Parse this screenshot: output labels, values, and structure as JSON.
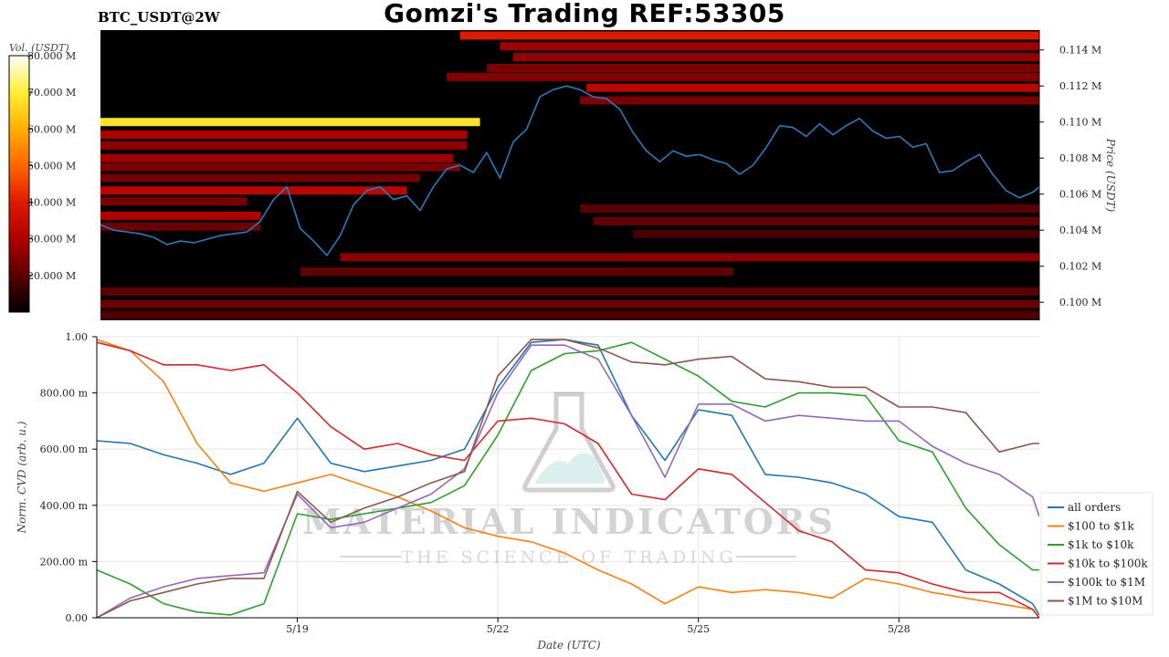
{
  "header": {
    "title": "Gomzi's Trading REF:53305",
    "pair": "BTC_USDT@2W"
  },
  "colorbar": {
    "label": "Vol. (USDT)",
    "ticks": [
      "20.000 M",
      "30.000 M",
      "40.000 M",
      "50.000 M",
      "60.000 M",
      "70.000 M",
      "80.000 M"
    ],
    "tick_values": [
      20,
      30,
      40,
      50,
      60,
      70,
      80
    ],
    "range": [
      10,
      80
    ],
    "colormap": [
      "#000000",
      "#5a0000",
      "#b00000",
      "#e01a00",
      "#ff6600",
      "#ffb000",
      "#ffee33",
      "#ffffff"
    ]
  },
  "watermark": {
    "line1": "MATERIAL INDICATORS",
    "line2": "THE SCIENCE OF TRADING"
  },
  "chart_data": [
    {
      "type": "heatmap",
      "ylabel": "Price (USDT)",
      "yticks": [
        "0.100 M",
        "0.102 M",
        "0.104 M",
        "0.106 M",
        "0.108 M",
        "0.110 M",
        "0.112 M",
        "0.114 M"
      ],
      "ytick_values": [
        100,
        102,
        104,
        106,
        108,
        110,
        112,
        114
      ],
      "ylim": [
        99.0,
        115.1
      ],
      "xlim": [
        0,
        14.1
      ],
      "walls": [
        {
          "price": 110.0,
          "from": 0,
          "to": 5.7,
          "volume": 68
        },
        {
          "price": 114.8,
          "from": 5.4,
          "to": 14.1,
          "volume": 40
        },
        {
          "price": 114.2,
          "from": 6.0,
          "to": 14.1,
          "volume": 28
        },
        {
          "price": 113.6,
          "from": 6.2,
          "to": 14.1,
          "volume": 27
        },
        {
          "price": 113.0,
          "from": 5.8,
          "to": 14.1,
          "volume": 24
        },
        {
          "price": 112.5,
          "from": 5.2,
          "to": 14.1,
          "volume": 25
        },
        {
          "price": 111.9,
          "from": 7.3,
          "to": 14.1,
          "volume": 32
        },
        {
          "price": 111.2,
          "from": 7.2,
          "to": 14.1,
          "volume": 24
        },
        {
          "price": 109.3,
          "from": 0,
          "to": 5.5,
          "volume": 30
        },
        {
          "price": 108.7,
          "from": 0,
          "to": 5.5,
          "volume": 26
        },
        {
          "price": 108.0,
          "from": 0,
          "to": 5.3,
          "volume": 28
        },
        {
          "price": 107.5,
          "from": 0,
          "to": 5.4,
          "volume": 24
        },
        {
          "price": 106.9,
          "from": 0,
          "to": 4.8,
          "volume": 23
        },
        {
          "price": 106.2,
          "from": 0,
          "to": 4.6,
          "volume": 32
        },
        {
          "price": 105.6,
          "from": 0,
          "to": 2.2,
          "volume": 24
        },
        {
          "price": 104.8,
          "from": 0,
          "to": 2.4,
          "volume": 30
        },
        {
          "price": 104.2,
          "from": 0,
          "to": 2.4,
          "volume": 22
        },
        {
          "price": 102.5,
          "from": 3.6,
          "to": 14.1,
          "volume": 26
        },
        {
          "price": 101.7,
          "from": 3.0,
          "to": 9.5,
          "volume": 21
        },
        {
          "price": 100.6,
          "from": 0,
          "to": 14.1,
          "volume": 20
        },
        {
          "price": 99.9,
          "from": 0,
          "to": 14.1,
          "volume": 22
        },
        {
          "price": 105.2,
          "from": 7.2,
          "to": 14.1,
          "volume": 20
        },
        {
          "price": 104.5,
          "from": 7.4,
          "to": 14.1,
          "volume": 21
        },
        {
          "price": 103.8,
          "from": 8.0,
          "to": 14.1,
          "volume": 18
        },
        {
          "price": 99.3,
          "from": 0,
          "to": 14.1,
          "volume": 19
        }
      ],
      "series": [
        {
          "name": "",
          "color": "#2b7bba",
          "x": [
            0.0,
            0.2,
            0.4,
            0.6,
            0.8,
            1.0,
            1.2,
            1.4,
            1.6,
            1.8,
            2.0,
            2.2,
            2.4,
            2.6,
            2.8,
            3.0,
            3.2,
            3.4,
            3.6,
            3.8,
            4.0,
            4.2,
            4.4,
            4.6,
            4.8,
            5.0,
            5.2,
            5.4,
            5.6,
            5.8,
            6.0,
            6.2,
            6.4,
            6.6,
            6.8,
            7.0,
            7.2,
            7.4,
            7.6,
            7.8,
            8.0,
            8.2,
            8.4,
            8.6,
            8.8,
            9.0,
            9.2,
            9.4,
            9.6,
            9.8,
            10.0,
            10.2,
            10.4,
            10.6,
            10.8,
            11.0,
            11.2,
            11.4,
            11.6,
            11.8,
            12.0,
            12.2,
            12.4,
            12.6,
            12.8,
            13.0,
            13.2,
            13.4,
            13.6,
            13.8,
            14.0,
            14.1
          ],
          "y": [
            104.3,
            104.0,
            103.9,
            103.8,
            103.6,
            103.2,
            103.4,
            103.3,
            103.5,
            103.7,
            103.8,
            103.9,
            104.5,
            105.7,
            106.4,
            104.1,
            103.4,
            102.6,
            103.7,
            105.4,
            106.2,
            106.4,
            105.7,
            105.9,
            105.1,
            106.4,
            107.4,
            107.6,
            107.2,
            108.3,
            106.9,
            108.9,
            109.6,
            111.4,
            111.8,
            112.0,
            111.8,
            111.4,
            111.3,
            110.7,
            109.4,
            108.4,
            107.8,
            108.4,
            108.1,
            108.2,
            107.9,
            107.7,
            107.1,
            107.6,
            108.6,
            109.8,
            109.7,
            109.2,
            109.9,
            109.3,
            109.8,
            110.2,
            109.5,
            109.1,
            109.2,
            108.6,
            108.8,
            107.2,
            107.3,
            107.8,
            108.2,
            107.1,
            106.2,
            105.8,
            106.1,
            106.4
          ]
        }
      ]
    },
    {
      "type": "line",
      "xlabel": "Date (UTC)",
      "ylabel": "Norm. CVD (arb. u.)",
      "xlim": [
        0,
        14.1
      ],
      "ylim": [
        0,
        1.0
      ],
      "xticks": [
        "5/19",
        "5/22",
        "5/25",
        "5/28"
      ],
      "xtick_values": [
        3,
        6,
        9,
        12
      ],
      "yticks": [
        "0.00",
        "200.00 m",
        "400.00 m",
        "600.00 m",
        "800.00 m",
        "1.00"
      ],
      "ytick_values": [
        0,
        0.2,
        0.4,
        0.6,
        0.8,
        1.0
      ],
      "legend_position": "bottom-right",
      "grid": true,
      "x": [
        0.0,
        0.5,
        1.0,
        1.5,
        2.0,
        2.5,
        3.0,
        3.5,
        4.0,
        4.5,
        5.0,
        5.5,
        6.0,
        6.5,
        7.0,
        7.5,
        8.0,
        8.5,
        9.0,
        9.5,
        10.0,
        10.5,
        11.0,
        11.5,
        12.0,
        12.5,
        13.0,
        13.5,
        14.0,
        14.1
      ],
      "series": [
        {
          "name": "all orders",
          "color": "#1f77b4",
          "values": [
            0.63,
            0.62,
            0.58,
            0.55,
            0.51,
            0.55,
            0.71,
            0.55,
            0.52,
            0.54,
            0.56,
            0.6,
            0.82,
            0.98,
            0.99,
            0.97,
            0.72,
            0.56,
            0.74,
            0.72,
            0.51,
            0.5,
            0.48,
            0.44,
            0.36,
            0.34,
            0.17,
            0.12,
            0.05,
            0.01
          ]
        },
        {
          "name": "$100 to $1k",
          "color": "#ff7f0e",
          "values": [
            0.99,
            0.95,
            0.84,
            0.62,
            0.48,
            0.45,
            0.48,
            0.51,
            0.47,
            0.43,
            0.38,
            0.32,
            0.29,
            0.27,
            0.23,
            0.17,
            0.12,
            0.05,
            0.11,
            0.09,
            0.1,
            0.09,
            0.07,
            0.14,
            0.12,
            0.09,
            0.07,
            0.05,
            0.03,
            0.0
          ]
        },
        {
          "name": "$1k to $10k",
          "color": "#2ca02c",
          "values": [
            0.17,
            0.12,
            0.05,
            0.02,
            0.01,
            0.05,
            0.37,
            0.35,
            0.37,
            0.39,
            0.41,
            0.47,
            0.65,
            0.88,
            0.94,
            0.95,
            0.98,
            0.92,
            0.86,
            0.77,
            0.75,
            0.8,
            0.8,
            0.79,
            0.63,
            0.59,
            0.39,
            0.26,
            0.17,
            0.17
          ]
        },
        {
          "name": "$10k to $100k",
          "color": "#d62728",
          "values": [
            0.98,
            0.95,
            0.9,
            0.9,
            0.88,
            0.9,
            0.8,
            0.68,
            0.6,
            0.62,
            0.58,
            0.56,
            0.7,
            0.71,
            0.69,
            0.62,
            0.44,
            0.42,
            0.53,
            0.51,
            0.41,
            0.31,
            0.27,
            0.17,
            0.16,
            0.12,
            0.09,
            0.09,
            0.03,
            0.0
          ]
        },
        {
          "name": "$100k to $1M",
          "color": "#9467bd",
          "values": [
            0.0,
            0.07,
            0.11,
            0.14,
            0.15,
            0.16,
            0.44,
            0.32,
            0.34,
            0.39,
            0.44,
            0.53,
            0.8,
            0.97,
            0.97,
            0.92,
            0.72,
            0.5,
            0.76,
            0.76,
            0.7,
            0.72,
            0.71,
            0.7,
            0.7,
            0.61,
            0.55,
            0.51,
            0.43,
            0.36
          ]
        },
        {
          "name": "$1M to $10M",
          "color": "#8c564b",
          "values": [
            0.0,
            0.06,
            0.09,
            0.12,
            0.14,
            0.14,
            0.45,
            0.34,
            0.39,
            0.43,
            0.48,
            0.52,
            0.86,
            0.99,
            0.99,
            0.96,
            0.91,
            0.9,
            0.92,
            0.93,
            0.85,
            0.84,
            0.82,
            0.82,
            0.75,
            0.75,
            0.73,
            0.59,
            0.62,
            0.62
          ]
        }
      ]
    }
  ]
}
